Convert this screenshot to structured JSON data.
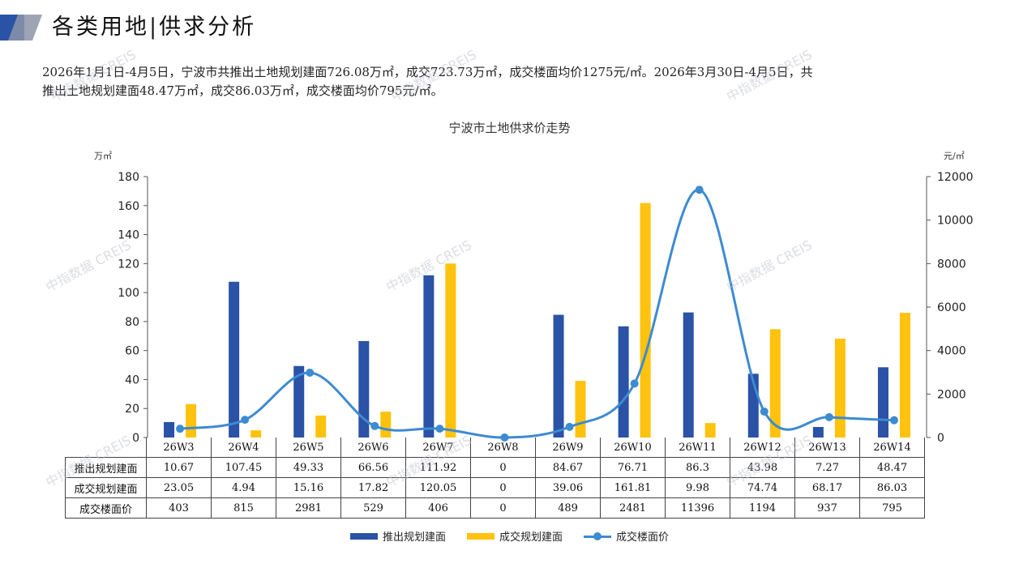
{
  "header": {
    "title": "各类用地|供求分析"
  },
  "summary": {
    "line1": "2026年1月1日-4月5日，宁波市共推出土地规划建面726.08万㎡，成交723.73万㎡，成交楼面均价1275元/㎡。2026年3月30日-4月5日，共",
    "line2": "推出土地规划建面48.47万㎡，成交86.03万㎡，成交楼面均价795元/㎡。"
  },
  "watermark": "中指数据 CREIS",
  "colors": {
    "supply": "#2a52a6",
    "deal": "#ffc20e",
    "price": "#3d8bd1"
  },
  "chart_data": {
    "type": "bar",
    "title": "宁波市土地供求价走势",
    "y_left_unit": "万㎡",
    "y_right_unit": "元/㎡",
    "y_left_range": [
      0,
      180
    ],
    "y_left_ticks": [
      0,
      20,
      40,
      60,
      80,
      100,
      120,
      140,
      160,
      180
    ],
    "y_right_range": [
      0,
      12000
    ],
    "y_right_ticks": [
      0,
      2000,
      4000,
      6000,
      8000,
      10000,
      12000
    ],
    "grid": false,
    "legend_position": "bottom",
    "categories": [
      "26W3",
      "26W4",
      "26W5",
      "26W6",
      "26W7",
      "26W8",
      "26W9",
      "26W10",
      "26W11",
      "26W12",
      "26W13",
      "26W14"
    ],
    "series": [
      {
        "name": "推出规划建面",
        "type": "bar",
        "axis": "left",
        "color": "#2a52a6",
        "values": [
          "10.67",
          "107.45",
          "49.33",
          "66.56",
          "111.92",
          "0",
          "84.67",
          "76.71",
          "86.3",
          "43.98",
          "7.27",
          "48.47"
        ]
      },
      {
        "name": "成交规划建面",
        "type": "bar",
        "axis": "left",
        "color": "#ffc20e",
        "values": [
          "23.05",
          "4.94",
          "15.16",
          "17.82",
          "120.05",
          "0",
          "39.06",
          "161.81",
          "9.98",
          "74.74",
          "68.17",
          "86.03"
        ]
      },
      {
        "name": "成交楼面价",
        "type": "line",
        "axis": "right",
        "color": "#3d8bd1",
        "values": [
          "403",
          "815",
          "2981",
          "529",
          "406",
          "0",
          "489",
          "2481",
          "11396",
          "1194",
          "937",
          "795"
        ]
      }
    ],
    "table_row_labels": [
      "推出规划建面",
      "成交规划建面",
      "成交楼面价"
    ]
  }
}
